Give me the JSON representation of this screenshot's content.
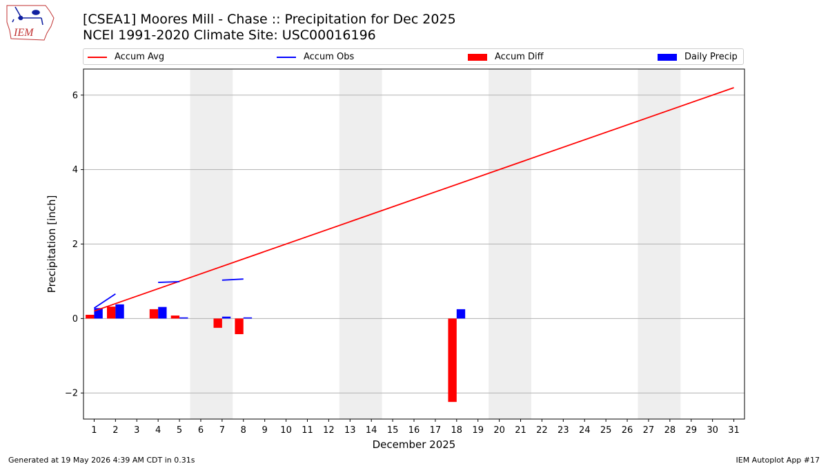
{
  "logo": {
    "text": "IEM"
  },
  "header": {
    "title_line1": "[CSEA1] Moores Mill - Chase :: Precipitation for Dec 2025",
    "title_line2": "NCEI 1991-2020 Climate Site: USC00016196"
  },
  "legend": {
    "items": [
      {
        "label": "Accum Avg",
        "color": "#ff0000",
        "kind": "line"
      },
      {
        "label": "Accum Obs",
        "color": "#0000ff",
        "kind": "line"
      },
      {
        "label": "Accum Diff",
        "color": "#ff0000",
        "kind": "box"
      },
      {
        "label": "Daily Precip",
        "color": "#0000ff",
        "kind": "box"
      }
    ]
  },
  "chart_data": {
    "type": "bar",
    "xlabel": "December 2025",
    "ylabel": "Precipitation [inch]",
    "xlim": [
      0.5,
      31.5
    ],
    "ylim": [
      -2.7,
      6.7
    ],
    "yticks": [
      -2,
      0,
      2,
      4,
      6
    ],
    "ytick_labels": [
      "−2",
      "0",
      "2",
      "4",
      "6"
    ],
    "xticks": [
      "1",
      "2",
      "3",
      "4",
      "5",
      "6",
      "7",
      "8",
      "9",
      "10",
      "11",
      "12",
      "13",
      "14",
      "15",
      "16",
      "17",
      "18",
      "19",
      "20",
      "21",
      "22",
      "23",
      "24",
      "25",
      "26",
      "27",
      "28",
      "29",
      "30",
      "31"
    ],
    "grid_y": true,
    "weekend_shading": [
      [
        6,
        7
      ],
      [
        13,
        14
      ],
      [
        20,
        21
      ],
      [
        27,
        28
      ]
    ],
    "colors": {
      "avg": "#ff0000",
      "obs": "#0000ff",
      "diff": "#ff0000",
      "daily": "#0000ff",
      "shade": "#eeeeee"
    },
    "series": [
      {
        "name": "Accum Avg",
        "kind": "line",
        "x": [
          1,
          31
        ],
        "values": [
          0.2,
          6.2
        ]
      },
      {
        "name": "Accum Obs",
        "kind": "line_segments",
        "segments": [
          {
            "x": [
              1,
              2
            ],
            "values": [
              0.28,
              0.66
            ]
          },
          {
            "x": [
              4,
              5
            ],
            "values": [
              0.97,
              0.99
            ]
          },
          {
            "x": [
              7,
              8
            ],
            "values": [
              1.03,
              1.06
            ]
          }
        ]
      },
      {
        "name": "Accum Diff",
        "kind": "bar",
        "x": [
          1,
          2,
          4,
          5,
          7,
          8,
          18
        ],
        "values": [
          0.1,
          0.32,
          0.25,
          0.08,
          -0.25,
          -0.42,
          -2.24
        ]
      },
      {
        "name": "Daily Precip",
        "kind": "bar",
        "x": [
          1,
          2,
          4,
          5,
          7,
          8,
          18
        ],
        "values": [
          0.28,
          0.38,
          0.31,
          0.03,
          0.05,
          0.03,
          0.25
        ]
      }
    ]
  },
  "footer": {
    "left": "Generated at 19 May 2026 4:39 AM CDT in 0.31s",
    "right": "IEM Autoplot App #17"
  }
}
